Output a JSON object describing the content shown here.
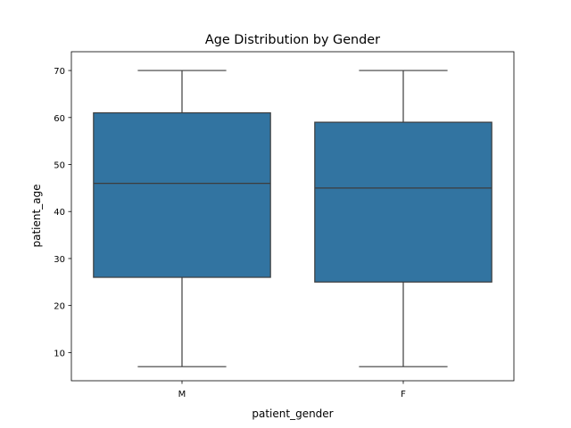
{
  "chart_data": {
    "type": "box",
    "title": "Age Distribution by Gender",
    "xlabel": "patient_gender",
    "ylabel": "patient_age",
    "ylim": [
      4,
      74
    ],
    "yticks": [
      10,
      20,
      30,
      40,
      50,
      60,
      70
    ],
    "categories": [
      "M",
      "F"
    ],
    "series": [
      {
        "name": "M",
        "min": 7,
        "q1": 26,
        "median": 46,
        "q3": 61,
        "max": 70
      },
      {
        "name": "F",
        "min": 7,
        "q1": 25,
        "median": 45,
        "q3": 59,
        "max": 70
      }
    ],
    "colors": {
      "box": "#3274a1",
      "line": "#3d3d3d"
    },
    "grid": false,
    "legend": "none"
  }
}
